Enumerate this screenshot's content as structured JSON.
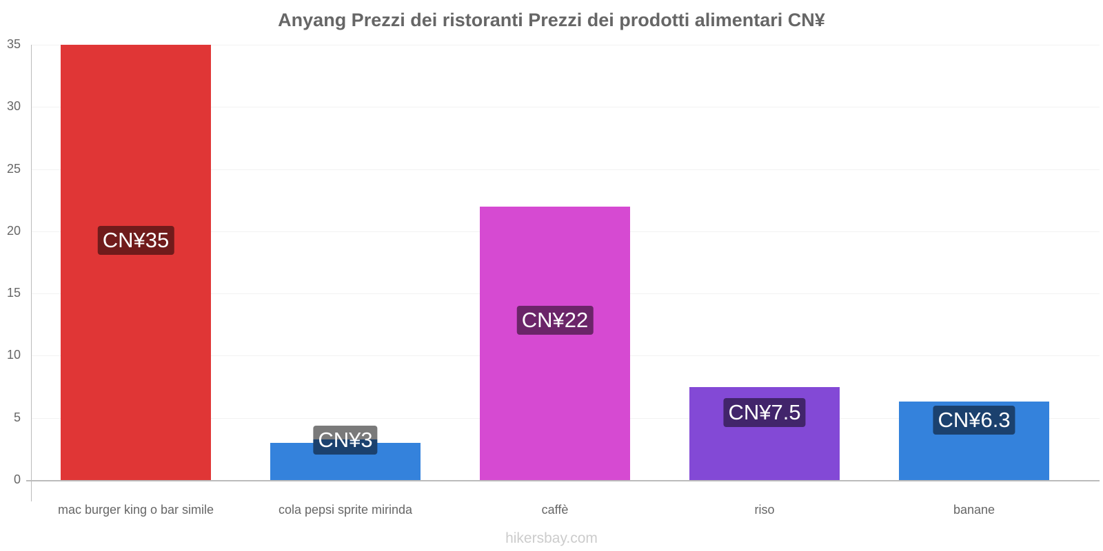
{
  "title": "Anyang Prezzi dei ristoranti Prezzi dei prodotti alimentari CN¥",
  "watermark": "hikersbay.com",
  "y_ticks": [
    "0",
    "5",
    "10",
    "15",
    "20",
    "25",
    "30",
    "35"
  ],
  "bars": [
    {
      "category": "mac burger king o bar simile",
      "value": 35,
      "label": "CN¥35",
      "color": "#e03636",
      "label_bg": "#701b1b"
    },
    {
      "category": "cola pepsi sprite mirinda",
      "value": 3,
      "label": "CN¥3",
      "color": "#3482dc",
      "label_bg": "#1b416e"
    },
    {
      "category": "caffè",
      "value": 22,
      "label": "CN¥22",
      "color": "#d64ad2",
      "label_bg": "#6b2569"
    },
    {
      "category": "riso",
      "value": 7.5,
      "label": "CN¥7.5",
      "color": "#8349d6",
      "label_bg": "#42256b"
    },
    {
      "category": "banane",
      "value": 6.3,
      "label": "CN¥6.3",
      "color": "#3482dc",
      "label_bg": "#1b416e"
    }
  ],
  "chart_data": {
    "type": "bar",
    "title": "Anyang Prezzi dei ristoranti Prezzi dei prodotti alimentari CN¥",
    "categories": [
      "mac burger king o bar simile",
      "cola pepsi sprite mirinda",
      "caffè",
      "riso",
      "banane"
    ],
    "values": [
      35,
      3,
      22,
      7.5,
      6.3
    ],
    "data_labels": [
      "CN¥35",
      "CN¥3",
      "CN¥22",
      "CN¥7.5",
      "CN¥6.3"
    ],
    "xlabel": "",
    "ylabel": "",
    "ylim": [
      0,
      35
    ],
    "yticks": [
      0,
      5,
      10,
      15,
      20,
      25,
      30,
      35
    ],
    "grid": true,
    "legend": null,
    "colors": [
      "#e03636",
      "#3482dc",
      "#d64ad2",
      "#8349d6",
      "#3482dc"
    ]
  }
}
